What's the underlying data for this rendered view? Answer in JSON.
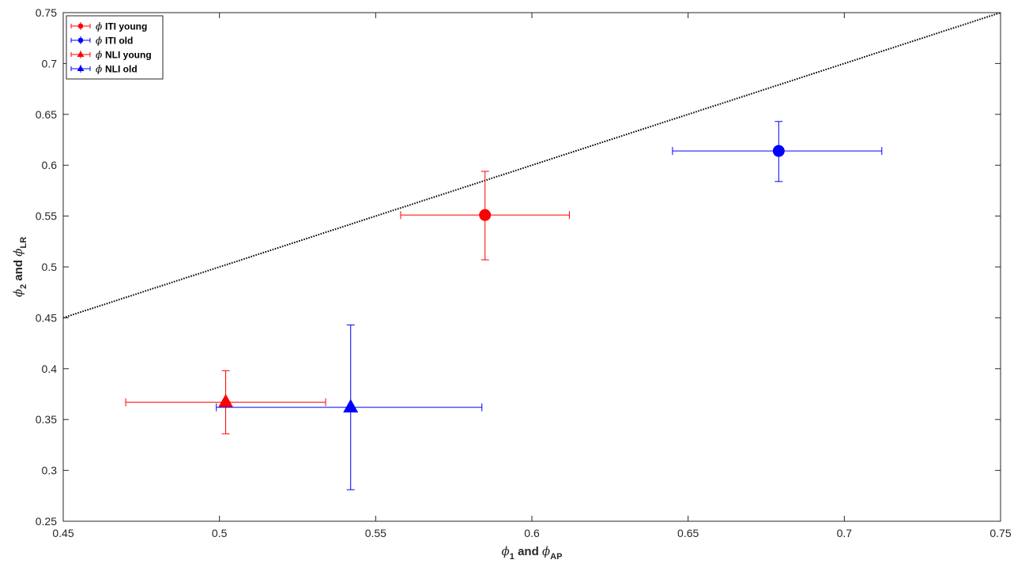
{
  "chart_data": {
    "type": "scatter",
    "title": "",
    "xlabel": {
      "symbol1": "ϕ",
      "sub1": "1",
      "mid": " and ",
      "symbol2": "ϕ",
      "sub2": "AP"
    },
    "ylabel": {
      "symbol1": "ϕ",
      "sub1": "2",
      "mid": " and ",
      "symbol2": "ϕ",
      "sub2": "LR"
    },
    "xlim": [
      0.45,
      0.75
    ],
    "ylim": [
      0.25,
      0.75
    ],
    "xticks": [
      0.45,
      0.5,
      0.55,
      0.6,
      0.65,
      0.7,
      0.75
    ],
    "xtick_labels": [
      "0.45",
      "0.5",
      "0.55",
      "0.6",
      "0.65",
      "0.7",
      "0.75"
    ],
    "yticks": [
      0.25,
      0.3,
      0.35,
      0.4,
      0.45,
      0.5,
      0.55,
      0.6,
      0.65,
      0.7,
      0.75
    ],
    "ytick_labels": [
      "0.25",
      "0.3",
      "0.35",
      "0.4",
      "0.45",
      "0.5",
      "0.55",
      "0.6",
      "0.65",
      "0.7",
      "0.75"
    ],
    "grid": false,
    "legend_position": "top-left",
    "reference_line": {
      "style": "dotted",
      "color": "#000000",
      "x": [
        0.45,
        0.75
      ],
      "y": [
        0.45,
        0.75
      ]
    },
    "series": [
      {
        "name": "ITI young",
        "symbol": "ϕ",
        "color": "#ff0000",
        "marker": "circle",
        "x": 0.585,
        "y": 0.551,
        "x_err": [
          0.558,
          0.612
        ],
        "y_err": [
          0.507,
          0.594
        ]
      },
      {
        "name": "ITI old",
        "symbol": "ϕ",
        "color": "#0000ff",
        "marker": "circle",
        "x": 0.679,
        "y": 0.614,
        "x_err": [
          0.645,
          0.712
        ],
        "y_err": [
          0.584,
          0.643
        ]
      },
      {
        "name": "NLI young",
        "symbol": "ϕ",
        "color": "#ff0000",
        "marker": "triangle",
        "x": 0.502,
        "y": 0.367,
        "x_err": [
          0.47,
          0.534
        ],
        "y_err": [
          0.336,
          0.398
        ]
      },
      {
        "name": "NLI old",
        "symbol": "ϕ",
        "color": "#0000ff",
        "marker": "triangle",
        "x": 0.542,
        "y": 0.362,
        "x_err": [
          0.499,
          0.584
        ],
        "y_err": [
          0.281,
          0.443
        ]
      }
    ]
  }
}
